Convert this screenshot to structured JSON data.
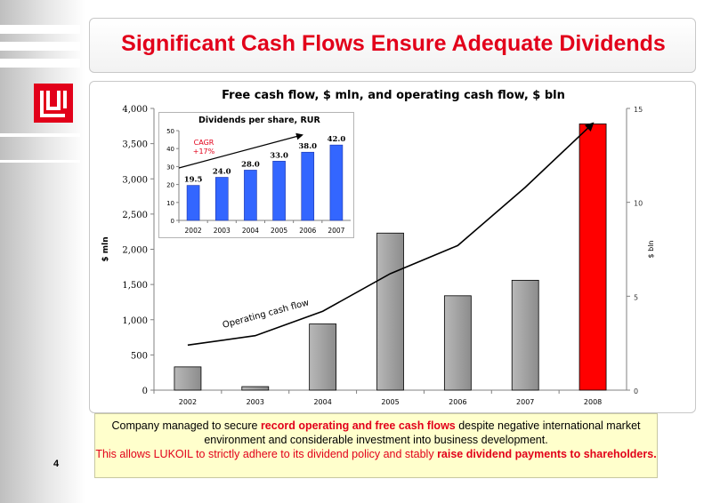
{
  "slide": {
    "title": "Significant Cash Flows Ensure Adequate Dividends",
    "page_number": "4",
    "brand_color": "#e2001a"
  },
  "footer": {
    "line1_pre": "Company managed to secure ",
    "line1_highlight": "record operating and free cash flows",
    "line1_post": " despite negative international market environment and considerable investment into business development.",
    "line2_pre": "This allows LUKOIL to strictly adhere to its dividend policy and stably ",
    "line2_highlight": "raise dividend payments to shareholders."
  },
  "chart_data": [
    {
      "type": "bar",
      "title": "Free cash flow, $ mln, and operating cash flow, $ bln",
      "categories": [
        "2002",
        "2003",
        "2004",
        "2005",
        "2006",
        "2007",
        "2008"
      ],
      "series": [
        {
          "kind": "bar",
          "axis": "left",
          "values": [
            330,
            50,
            940,
            2230,
            1340,
            1560,
            3780
          ],
          "colors": [
            "#9e9e9e",
            "#9e9e9e",
            "#9e9e9e",
            "#9e9e9e",
            "#9e9e9e",
            "#9e9e9e",
            "#ff0000"
          ]
        },
        {
          "kind": "line",
          "axis": "right",
          "name": "Operating cash flow",
          "values": [
            2.4,
            2.9,
            4.2,
            6.2,
            7.7,
            10.8,
            14.2
          ]
        }
      ],
      "ylabel": "$ mln",
      "ylim": [
        0,
        4000
      ],
      "yticks": [
        0,
        500,
        1000,
        1500,
        2000,
        2500,
        3000,
        3500,
        4000
      ],
      "yticklabels": [
        "0",
        "500",
        "1,000",
        "1,500",
        "2,000",
        "2,500",
        "3,000",
        "3,500",
        "4,000"
      ],
      "y2label": "$ bln",
      "y2lim": [
        0,
        15
      ],
      "y2ticks": [
        0,
        5,
        10,
        15
      ],
      "grid": false
    },
    {
      "type": "bar",
      "title": "Dividends per share, RUR",
      "categories": [
        "2002",
        "2003",
        "2004",
        "2005",
        "2006",
        "2007"
      ],
      "values": [
        19.5,
        24.0,
        28.0,
        33.0,
        38.0,
        42.0
      ],
      "value_labels": [
        "19.5",
        "24.0",
        "28.0",
        "33.0",
        "38.0",
        "42.0"
      ],
      "color": "#3366ff",
      "ylim": [
        0,
        50
      ],
      "yticks": [
        0,
        10,
        20,
        30,
        40,
        50
      ],
      "annotation": {
        "line1": "CAGR",
        "line2": "+17%"
      },
      "grid": false
    }
  ]
}
